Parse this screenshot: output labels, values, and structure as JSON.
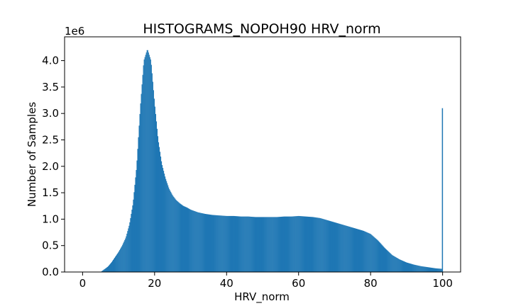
{
  "chart_data": {
    "type": "bar",
    "title": "HISTOGRAMS_NOPOH90 HRV_norm",
    "xlabel": "HRV_norm",
    "ylabel": "Number of Samples",
    "y_offset_text": "1e6",
    "xlim": [
      -5,
      105
    ],
    "ylim": [
      0,
      4.45
    ],
    "x_ticks": [
      0,
      20,
      40,
      60,
      80,
      100
    ],
    "x_tick_labels": [
      "0",
      "20",
      "40",
      "60",
      "80",
      "100"
    ],
    "y_ticks": [
      0,
      0.5,
      1.0,
      1.5,
      2.0,
      2.5,
      3.0,
      3.5,
      4.0
    ],
    "y_tick_labels": [
      "0.0",
      "0.5",
      "1.0",
      "1.5",
      "2.0",
      "2.5",
      "3.0",
      "3.5",
      "4.0"
    ],
    "grid": false,
    "bar_color": "#1f77b4",
    "series": [
      {
        "x": [
          5,
          6,
          7,
          8,
          9,
          10,
          11,
          12,
          13,
          14,
          15,
          16,
          17,
          18,
          19,
          20,
          21,
          22,
          23,
          24,
          25,
          26,
          27,
          28,
          29,
          30,
          32,
          34,
          36,
          38,
          40,
          42,
          44,
          46,
          48,
          50,
          52,
          54,
          56,
          58,
          60,
          62,
          64,
          66,
          68,
          70,
          72,
          74,
          76,
          78,
          80,
          82,
          84,
          86,
          88,
          90,
          92,
          94,
          96,
          98,
          99.8,
          100
        ],
        "values": [
          0.0,
          0.05,
          0.1,
          0.18,
          0.28,
          0.38,
          0.5,
          0.65,
          0.9,
          1.3,
          2.0,
          3.1,
          4.0,
          4.22,
          4.0,
          3.2,
          2.5,
          2.05,
          1.78,
          1.58,
          1.45,
          1.36,
          1.3,
          1.25,
          1.22,
          1.18,
          1.13,
          1.1,
          1.08,
          1.07,
          1.06,
          1.06,
          1.05,
          1.05,
          1.04,
          1.04,
          1.04,
          1.04,
          1.05,
          1.05,
          1.06,
          1.05,
          1.04,
          1.02,
          0.98,
          0.94,
          0.9,
          0.86,
          0.82,
          0.78,
          0.72,
          0.6,
          0.45,
          0.32,
          0.24,
          0.18,
          0.14,
          0.11,
          0.09,
          0.07,
          0.06,
          3.1
        ]
      }
    ]
  }
}
